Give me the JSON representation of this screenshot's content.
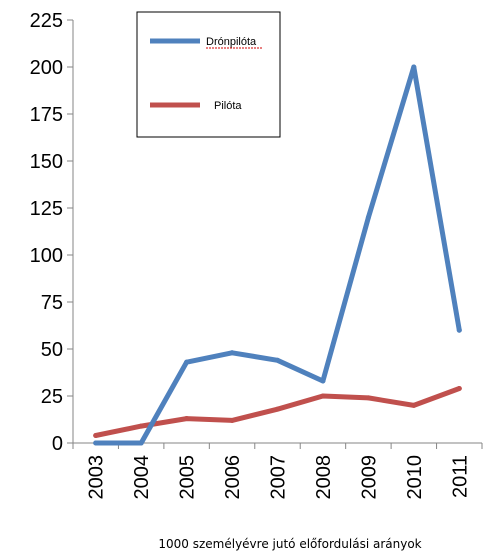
{
  "chart_data": {
    "type": "line",
    "categories": [
      "2003",
      "2004",
      "2005",
      "2006",
      "2007",
      "2008",
      "2009",
      "2010",
      "2011"
    ],
    "series": [
      {
        "name": "Drónpilóta",
        "color": "#4F81BD",
        "values": [
          0,
          0,
          43,
          48,
          44,
          33,
          120,
          200,
          60
        ]
      },
      {
        "name": "Pilóta",
        "color": "#C0504D",
        "values": [
          4,
          9,
          13,
          12,
          18,
          25,
          24,
          20,
          29
        ]
      }
    ],
    "ylim": [
      0,
      225
    ],
    "yticks": [
      "0",
      "25",
      "50",
      "75",
      "100",
      "125",
      "150",
      "175",
      "200",
      "225"
    ],
    "xlabel": "1000 személyévre jutó előfordulási arányok",
    "legend": {
      "placement": "top-center",
      "boxed": true
    },
    "grid": false
  }
}
